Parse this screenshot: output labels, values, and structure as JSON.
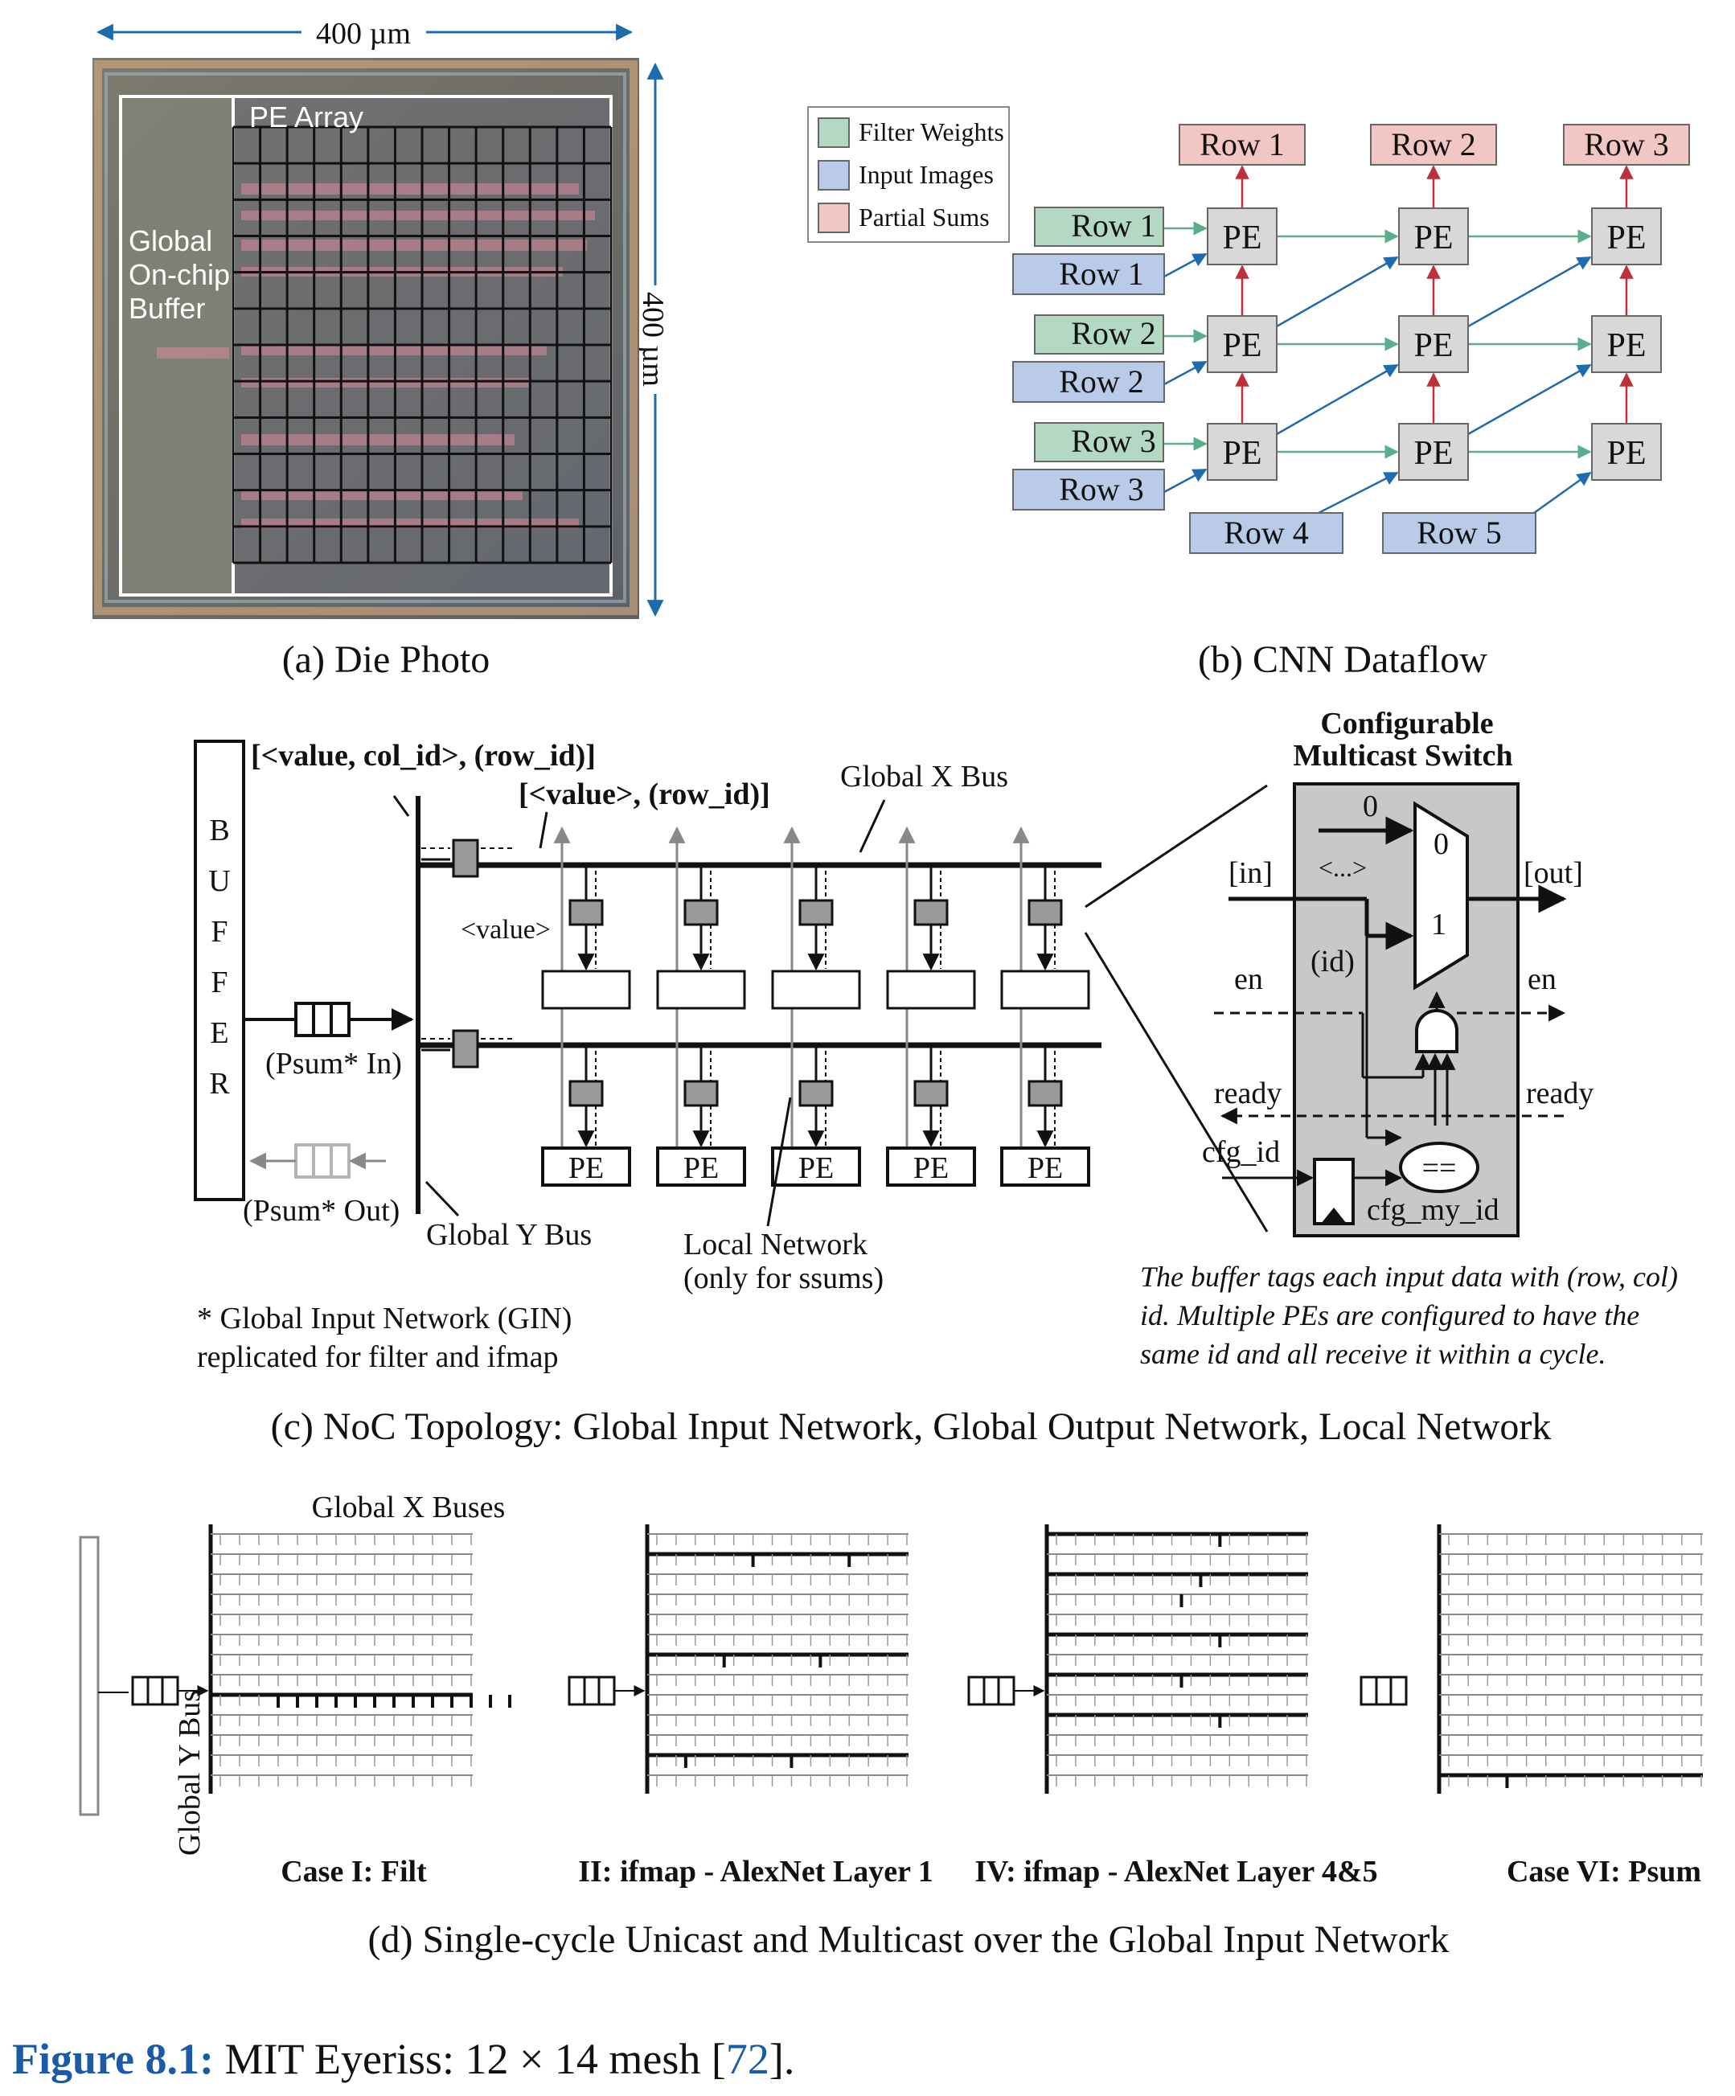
{
  "panel_a": {
    "caption": "(a) Die Photo",
    "width_label": "400 µm",
    "height_label": "400 µm",
    "pe_array_label": "PE Array",
    "buffer_label": [
      "Global",
      "On-chip",
      "Buffer"
    ]
  },
  "panel_b": {
    "caption": "(b) CNN Dataflow",
    "legend": [
      {
        "label": "Filter Weights",
        "color": "#b3d9c4"
      },
      {
        "label": "Input Images",
        "color": "#b9cbe8"
      },
      {
        "label": "Partial Sums",
        "color": "#f2c6c2"
      }
    ],
    "output_rows": [
      "Row 1",
      "Row 2",
      "Row 3"
    ],
    "filter_rows": [
      "Row 1",
      "Row 2",
      "Row 3"
    ],
    "input_rows": [
      "Row 1",
      "Row 2",
      "Row 3"
    ],
    "bottom_inputs": [
      "Row 4",
      "Row 5"
    ],
    "pe_label": "PE",
    "colors": {
      "green": "#5aae8a",
      "blue": "#1f6bb0",
      "red": "#c0303a"
    }
  },
  "panel_c": {
    "caption": "(c) NoC Topology: Global Input Network, Global Output Network, Local Network",
    "buffer_letters": [
      "B",
      "U",
      "F",
      "F",
      "E",
      "R"
    ],
    "tag_col_row": "[<value, col_id>, (row_id)]",
    "tag_row": "[<value>, (row_id)]",
    "global_x_bus": "Global X Bus",
    "value_label": "<value>",
    "psum_in": "(Psum* In)",
    "psum_out": "(Psum* Out)",
    "global_y_bus": "Global Y Bus",
    "local_network": [
      "Local Network",
      "(only for ssums)"
    ],
    "pe_label": "PE",
    "footnote": [
      "* Global Input Network (GIN)",
      "replicated for filter and ifmap"
    ],
    "switch": {
      "title": [
        "Configurable",
        "Multicast Switch"
      ],
      "zero_in": "0",
      "mux_zero": "0",
      "mux_one": "1",
      "in": "[in]",
      "dots": "<...>",
      "out": "[out]",
      "id": "(id)",
      "en_left": "en",
      "en_right": "en",
      "ready_left": "ready",
      "ready_right": "ready",
      "cfg_id": "cfg_id",
      "eq": "==",
      "cfg_my_id": "cfg_my_id"
    },
    "note": [
      "The buffer tags each input data with (row, col)",
      "id. Multiple PEs are configured to have the",
      "same id and all receive it within a cycle."
    ]
  },
  "panel_d": {
    "caption": "(d) Single-cycle Unicast and Multicast over the Global Input Network",
    "global_x_buses": "Global X Buses",
    "global_y_bus": "Global Y Bus",
    "cases": [
      "Case I: Filt",
      "II: ifmap - AlexNet Layer 1",
      "IV: ifmap - AlexNet Layer 4&5",
      "Case VI: Psum"
    ]
  },
  "figure_caption": {
    "number": "Figure 8.1:",
    "text": "MIT Eyeriss: 12 × 14 mesh [",
    "ref": "72",
    "tail": "]."
  }
}
